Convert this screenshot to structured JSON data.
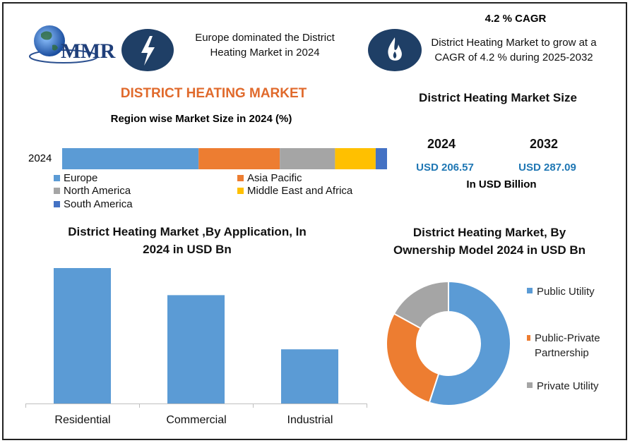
{
  "brand": {
    "logo_text": "MMR"
  },
  "icons": {
    "left": "lightning-bolt-icon",
    "right": "flame-icon",
    "logo": "globe-icon"
  },
  "header": {
    "europe_statement": "Europe dominated the District Heating Market in 2024",
    "cagr_title": "4.2 % CAGR",
    "cagr_statement": "District Heating Market to grow at a CAGR of 4.2 % during 2025-2032"
  },
  "main_title": "DISTRICT HEATING MARKET",
  "market_size": {
    "title": "District Heating Market Size",
    "year_a": "2024",
    "year_b": "2032",
    "value_a": "USD 206.57",
    "value_b": "USD 287.09",
    "unit": "In USD Billion"
  },
  "colors": {
    "europe": "#5b9bd5",
    "asia_pacific": "#ed7d31",
    "north_america": "#a5a5a5",
    "middle_east_africa": "#ffc000",
    "south_america": "#4472c4",
    "bar": "#5b9bd5",
    "title_orange": "#e06a2c",
    "value_blue": "#1f77b4",
    "icon_navy": "#1f3f66"
  },
  "chart_data": [
    {
      "type": "bar",
      "orientation": "horizontal-stacked",
      "title": "Region wise Market Size in 2024 (%)",
      "categories": [
        "2024"
      ],
      "series": [
        {
          "name": "Europe",
          "values": [
            42
          ]
        },
        {
          "name": "Asia Pacific",
          "values": [
            25
          ]
        },
        {
          "name": "North America",
          "values": [
            17
          ]
        },
        {
          "name": "Middle East and Africa",
          "values": [
            12.5
          ]
        },
        {
          "name": "South America",
          "values": [
            3.5
          ]
        }
      ],
      "xlim": [
        0,
        100
      ],
      "legend": "bottom",
      "grid": false
    },
    {
      "type": "bar",
      "title": "District Heating Market ,By  Application, In 2024 in USD Bn",
      "categories": [
        "Residential",
        "Commercial",
        "Industrial"
      ],
      "values": [
        100,
        80,
        40
      ],
      "ylim": [
        0,
        100
      ],
      "grid": false
    },
    {
      "type": "pie",
      "style": "donut",
      "title": "District Heating Market, By Ownership Model  2024 in USD Bn",
      "labels": [
        "Public Utility",
        "Public-Private Partnership",
        "Private Utility"
      ],
      "values": [
        55,
        28,
        17
      ],
      "legend": "right"
    }
  ]
}
